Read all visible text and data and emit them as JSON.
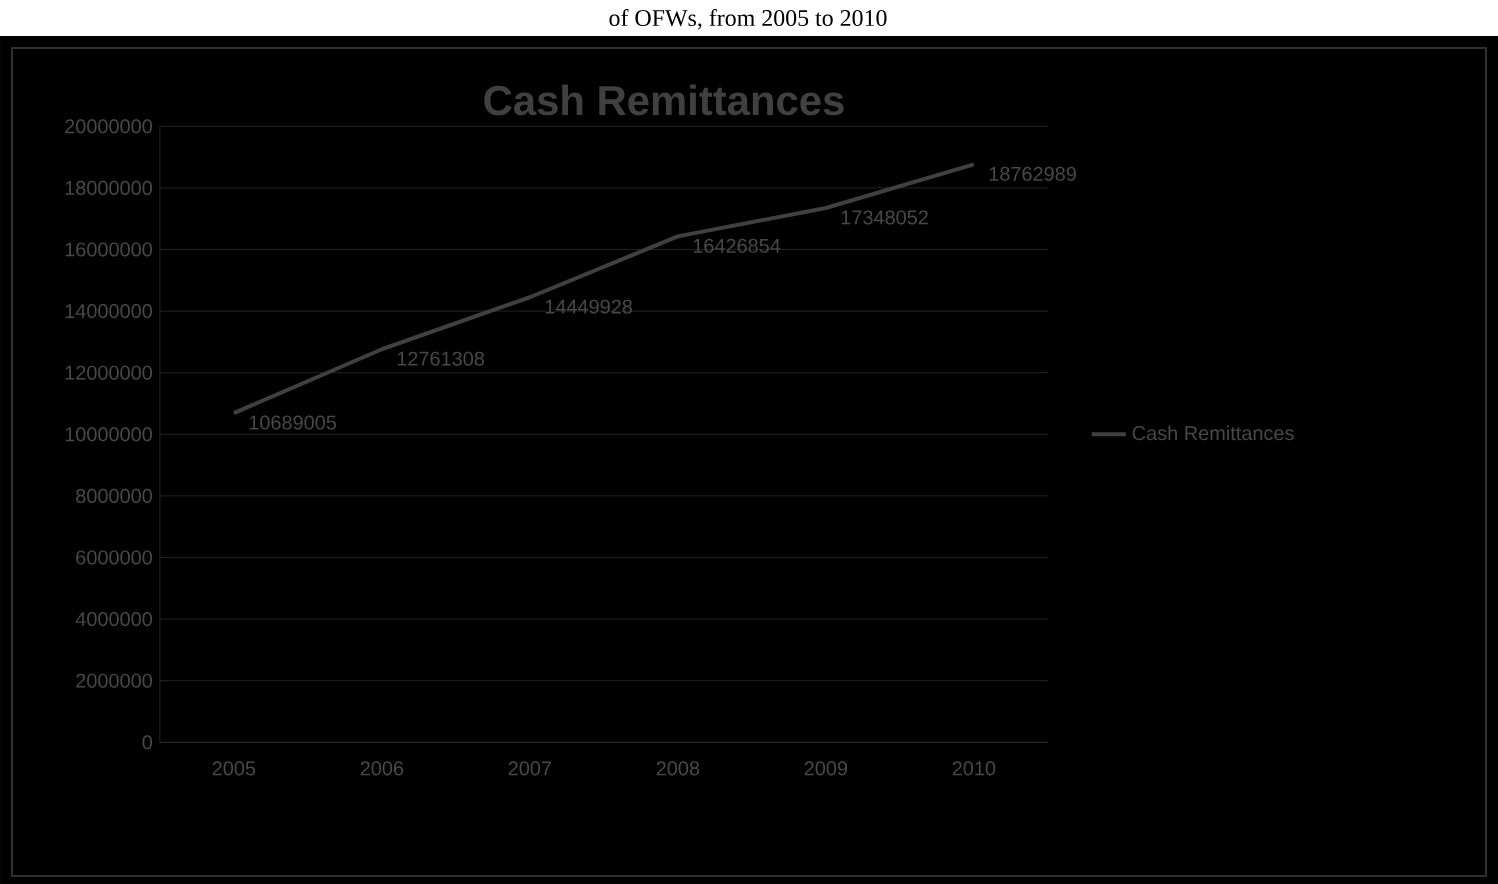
{
  "chart_data": {
    "type": "line",
    "title": "Cash Remittances",
    "annotations": [
      "of OFWs, from 2005 to 2010"
    ],
    "categories": [
      "2005",
      "2006",
      "2007",
      "2008",
      "2009",
      "2010"
    ],
    "series": [
      {
        "name": "Cash Remittances",
        "color": "#404040",
        "values": [
          10689005,
          12761308,
          14449928,
          16426854,
          17348052,
          18762989
        ]
      }
    ],
    "ylim": [
      0,
      20000000
    ],
    "yticks": [
      0,
      2000000,
      4000000,
      6000000,
      8000000,
      10000000,
      12000000,
      14000000,
      16000000,
      18000000,
      20000000
    ],
    "grid": "y",
    "legend": "right",
    "marker": "none",
    "line_style": "solid",
    "data_labels": true
  }
}
